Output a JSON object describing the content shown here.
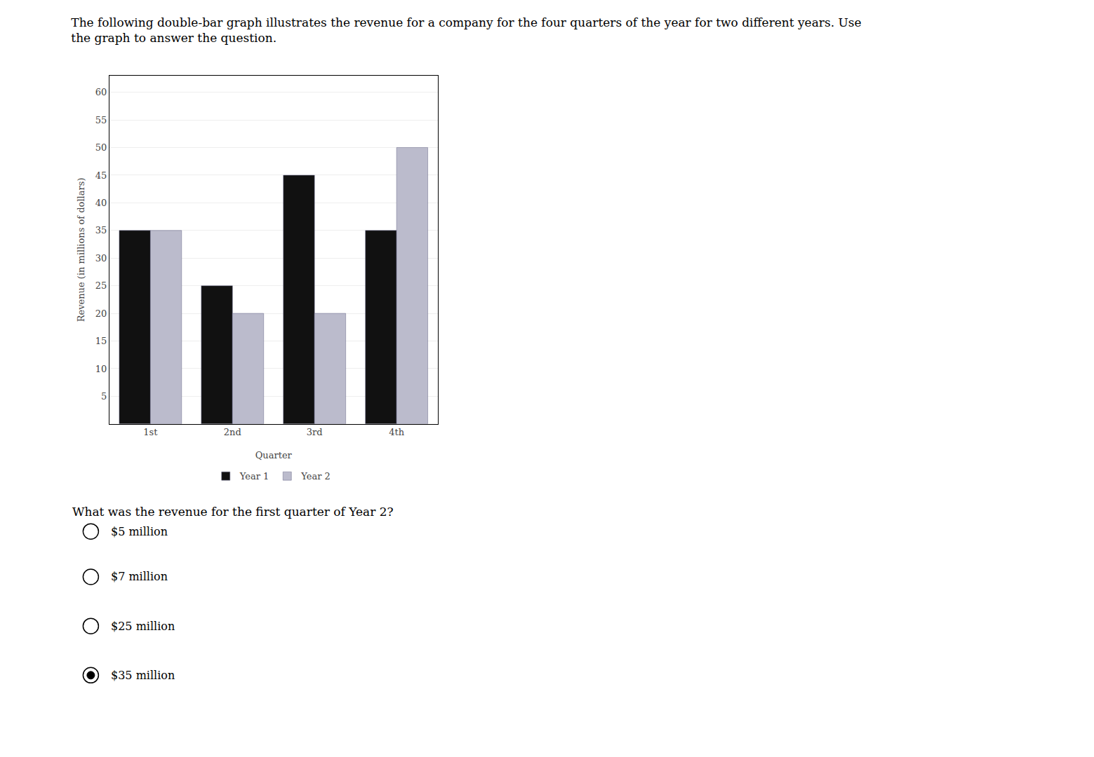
{
  "chart_data": {
    "type": "bar",
    "title": "The following double-bar graph illustrates the revenue for a company for the four quarters of the year for two different years. Use\nthe graph to answer the question.",
    "xlabel": "Quarter",
    "ylabel": "Revenue (in millions of dollars)",
    "categories": [
      "1st",
      "2nd",
      "3rd",
      "4th"
    ],
    "series": [
      {
        "name": "Year 1",
        "color": "#111111",
        "values": [
          35,
          25,
          45,
          35
        ]
      },
      {
        "name": "Year 2",
        "color": "#bbbbcc",
        "values": [
          35,
          20,
          20,
          50
        ]
      }
    ],
    "ylim": [
      0,
      63
    ],
    "yticks": [
      5,
      10,
      15,
      20,
      25,
      30,
      35,
      40,
      45,
      50,
      55,
      60
    ],
    "grid": true,
    "legend": "bottom",
    "annotations": [
      {
        "text": "What was the revenue for the first quarter of Year 2?"
      },
      {
        "text": "$5 million",
        "marker": "circle-open"
      },
      {
        "text": "$7 million",
        "marker": "circle-open"
      },
      {
        "text": "$25 million",
        "marker": "circle-open"
      },
      {
        "text": "$35 million",
        "marker": "circle-dot"
      }
    ]
  }
}
